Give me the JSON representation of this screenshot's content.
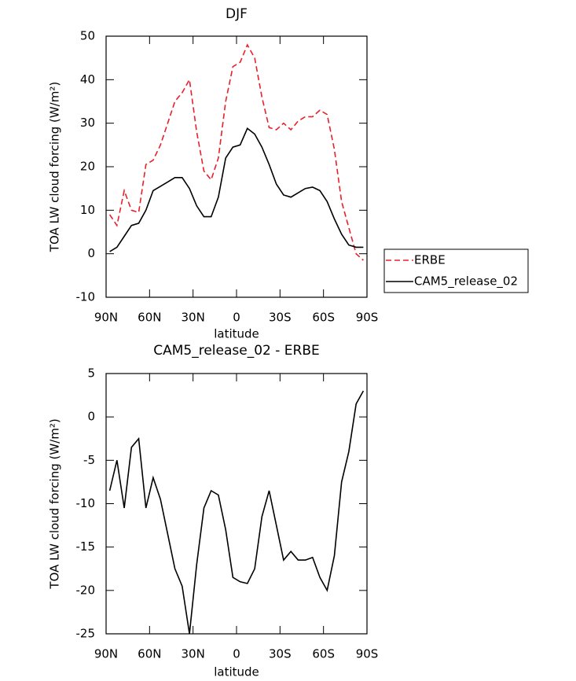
{
  "chart_data": [
    {
      "type": "line",
      "title": "DJF",
      "x_label": "latitude",
      "y_label": "TOA LW cloud forcing (W/m²)",
      "x": [
        87.5,
        82.5,
        77.5,
        72.5,
        67.5,
        62.5,
        57.5,
        52.5,
        47.5,
        42.5,
        37.5,
        32.5,
        27.5,
        22.5,
        17.5,
        12.5,
        7.5,
        2.5,
        -2.5,
        -7.5,
        -12.5,
        -17.5,
        -22.5,
        -27.5,
        -32.5,
        -37.5,
        -42.5,
        -47.5,
        -52.5,
        -57.5,
        -62.5,
        -67.5,
        -72.5,
        -77.5,
        -82.5,
        -87.5
      ],
      "series": [
        {
          "name": "ERBE",
          "color": "#e8202a",
          "linestyle": "dashed",
          "values": [
            9,
            6.5,
            14.5,
            10,
            9.5,
            20.5,
            21.5,
            25,
            30,
            35,
            37,
            40,
            28,
            19,
            17,
            22,
            35,
            43,
            44,
            48,
            45,
            36,
            29,
            28.5,
            30,
            28.5,
            30.5,
            31.5,
            31.5,
            33,
            32,
            24,
            12,
            6,
            0,
            -1.5
          ]
        },
        {
          "name": "CAM5_release_02",
          "color": "#000000",
          "linestyle": "solid",
          "values": [
            0.5,
            1.5,
            4,
            6.5,
            7,
            10,
            14.5,
            15.5,
            16.5,
            17.5,
            17.5,
            15,
            11,
            8.5,
            8.5,
            13,
            22,
            24.5,
            25,
            28.8,
            27.5,
            24.5,
            20.5,
            16,
            13.5,
            13,
            14,
            15,
            15.3,
            14.5,
            12,
            8,
            4.5,
            2,
            1.5,
            1.5
          ]
        }
      ],
      "xlim": [
        90,
        -90
      ],
      "xticks": [
        {
          "value": 90,
          "label": "90N"
        },
        {
          "value": 60,
          "label": "60N"
        },
        {
          "value": 30,
          "label": "30N"
        },
        0,
        {
          "value": -30,
          "label": "30S"
        },
        {
          "value": -60,
          "label": "60S"
        },
        {
          "value": -90,
          "label": "90S"
        }
      ],
      "ylim": [
        -10,
        50
      ],
      "yticks": [
        -10,
        0,
        10,
        20,
        30,
        40,
        50
      ],
      "legend": "outside-right"
    },
    {
      "type": "line",
      "title": "CAM5_release_02 - ERBE",
      "x_label": "latitude",
      "y_label": "TOA LW cloud forcing (W/m²)",
      "x": [
        87.5,
        82.5,
        77.5,
        72.5,
        67.5,
        62.5,
        57.5,
        52.5,
        47.5,
        42.5,
        37.5,
        32.5,
        27.5,
        22.5,
        17.5,
        12.5,
        7.5,
        2.5,
        -2.5,
        -7.5,
        -12.5,
        -17.5,
        -22.5,
        -27.5,
        -32.5,
        -37.5,
        -42.5,
        -47.5,
        -52.5,
        -57.5,
        -62.5,
        -67.5,
        -72.5,
        -77.5,
        -82.5,
        -87.5
      ],
      "color": "#000000",
      "values": [
        -8.5,
        -5,
        -10.5,
        -3.5,
        -2.5,
        -10.5,
        -7,
        -9.5,
        -13.5,
        -17.5,
        -19.5,
        -25,
        -17,
        -10.5,
        -8.5,
        -9,
        -13,
        -18.5,
        -19,
        -19.2,
        -17.5,
        -11.5,
        -8.5,
        -12.5,
        -16.5,
        -15.5,
        -16.5,
        -16.5,
        -16.2,
        -18.5,
        -20,
        -16,
        -7.5,
        -4,
        1.5,
        3
      ],
      "xlim": [
        90,
        -90
      ],
      "xticks": [
        {
          "value": 90,
          "label": "90N"
        },
        {
          "value": 60,
          "label": "60N"
        },
        {
          "value": 30,
          "label": "30N"
        },
        0,
        {
          "value": -30,
          "label": "30S"
        },
        {
          "value": -60,
          "label": "60S"
        },
        {
          "value": -90,
          "label": "90S"
        }
      ],
      "ylim": [
        -25,
        5
      ],
      "yticks": [
        -25,
        -20,
        -15,
        -10,
        -5,
        0,
        5
      ]
    }
  ]
}
